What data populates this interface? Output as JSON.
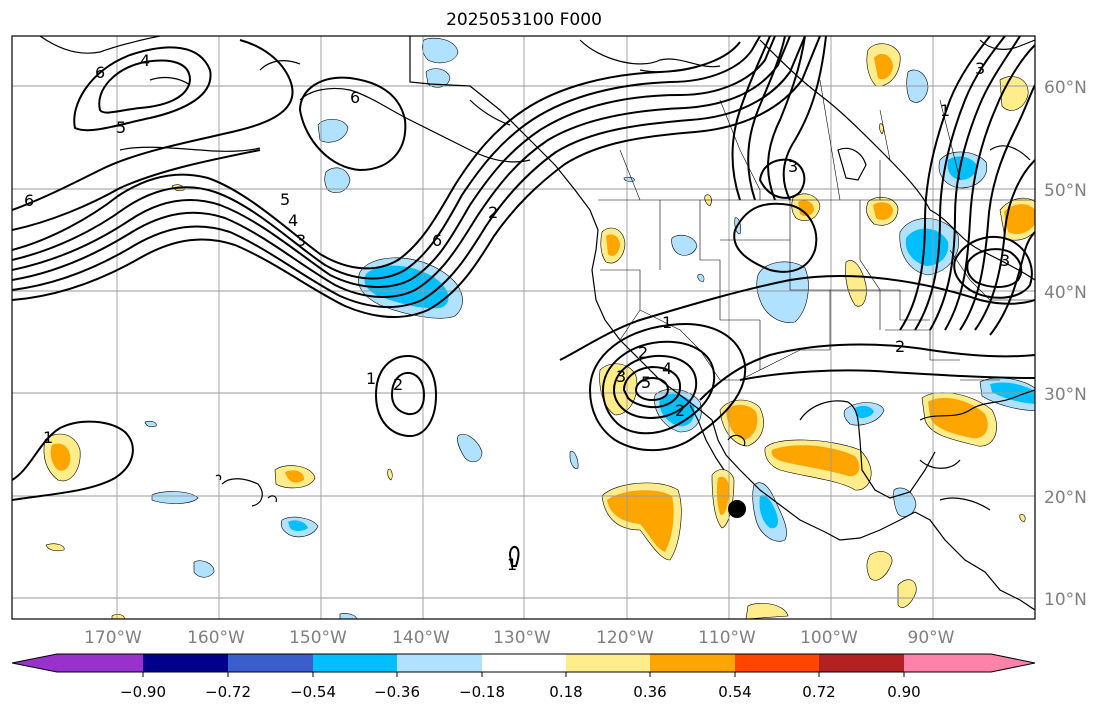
{
  "title": "2025053100 F000",
  "map": {
    "lon_labels": [
      "170°W",
      "160°W",
      "150°W",
      "140°W",
      "130°W",
      "120°W",
      "110°W",
      "100°W",
      "90°W"
    ],
    "lat_labels": [
      "60°N",
      "50°N",
      "40°N",
      "30°N",
      "20°N",
      "10°N"
    ],
    "contour_labels": [
      "6",
      "4",
      "5",
      "6",
      "6",
      "5",
      "4",
      "3",
      "2",
      "6",
      "3",
      "3",
      "1",
      "2",
      "1",
      "2",
      "1",
      "2",
      "3",
      "5",
      "4",
      "2",
      "1",
      "3",
      "1"
    ],
    "label_color": "#808080",
    "contour_color": "#000000"
  },
  "colorbar": {
    "tick_labels": [
      "−0.90",
      "−0.72",
      "−0.54",
      "−0.36",
      "−0.18",
      "0.18",
      "0.36",
      "0.54",
      "0.72",
      "0.90"
    ],
    "colors": [
      "#9932cc",
      "#00008b",
      "#3a5fcd",
      "#00bfff",
      "#b0e2ff",
      "#ffffff",
      "#ffec8b",
      "#ffa500",
      "#ff4500",
      "#b22222",
      "#ff82ab"
    ]
  }
}
